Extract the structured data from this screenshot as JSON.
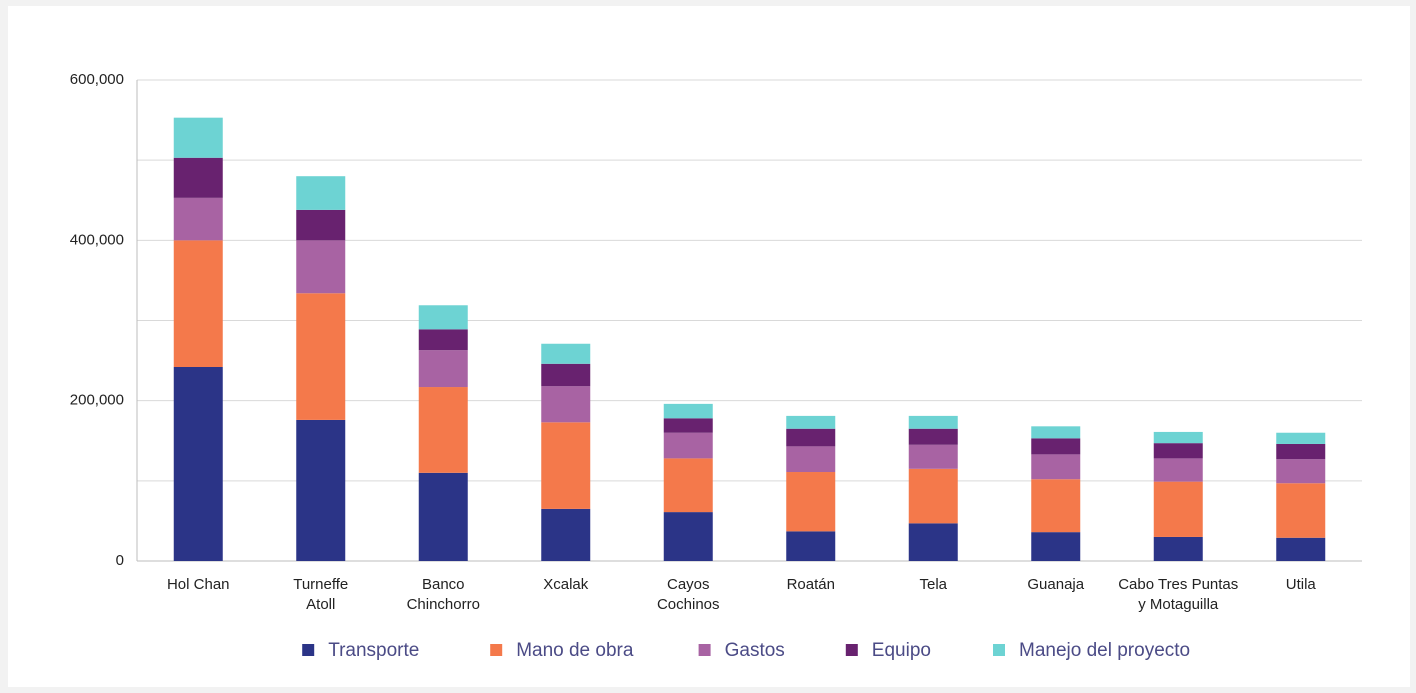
{
  "chart_data": {
    "type": "stacked_bar",
    "categories": [
      "Hol Chan",
      "Turneffe\nAtoll",
      "Banco\nChinchorro",
      "Xcalak",
      "Cayos\nCochinos",
      "Roatán",
      "Tela",
      "Guanaja",
      "Cabo Tres Puntas\ny Motaguilla",
      "Utila"
    ],
    "series": [
      {
        "name": "Transporte",
        "color": "#2b3487",
        "values": [
          242000,
          176000,
          110000,
          65000,
          61000,
          37000,
          47000,
          36000,
          30000,
          29000
        ]
      },
      {
        "name": "Mano de obra",
        "color": "#f4794b",
        "values": [
          158000,
          158000,
          107000,
          108000,
          67000,
          74000,
          68000,
          66000,
          69000,
          68000
        ]
      },
      {
        "name": "Gastos",
        "color": "#a863a3",
        "values": [
          53000,
          66000,
          46000,
          45000,
          32000,
          32000,
          30000,
          31000,
          29000,
          30000
        ]
      },
      {
        "name": "Equipo",
        "color": "#68226f",
        "values": [
          50000,
          38000,
          26000,
          28000,
          18000,
          22000,
          20000,
          20000,
          19000,
          19000
        ]
      },
      {
        "name": "Manejo del proyecto",
        "color": "#6dd3d3",
        "values": [
          50000,
          42000,
          30000,
          25000,
          18000,
          16000,
          16000,
          15000,
          14000,
          14000
        ]
      }
    ],
    "ylim": [
      0,
      600000
    ],
    "yticks": [
      0,
      {
        "value": 200000,
        "label": "200,000"
      },
      {
        "value": 400000,
        "label": "400,000"
      },
      {
        "value": 600000,
        "label": "600,000"
      }
    ],
    "yminor": [
      100000,
      300000,
      500000
    ],
    "grid": true,
    "legend": "bottom"
  }
}
